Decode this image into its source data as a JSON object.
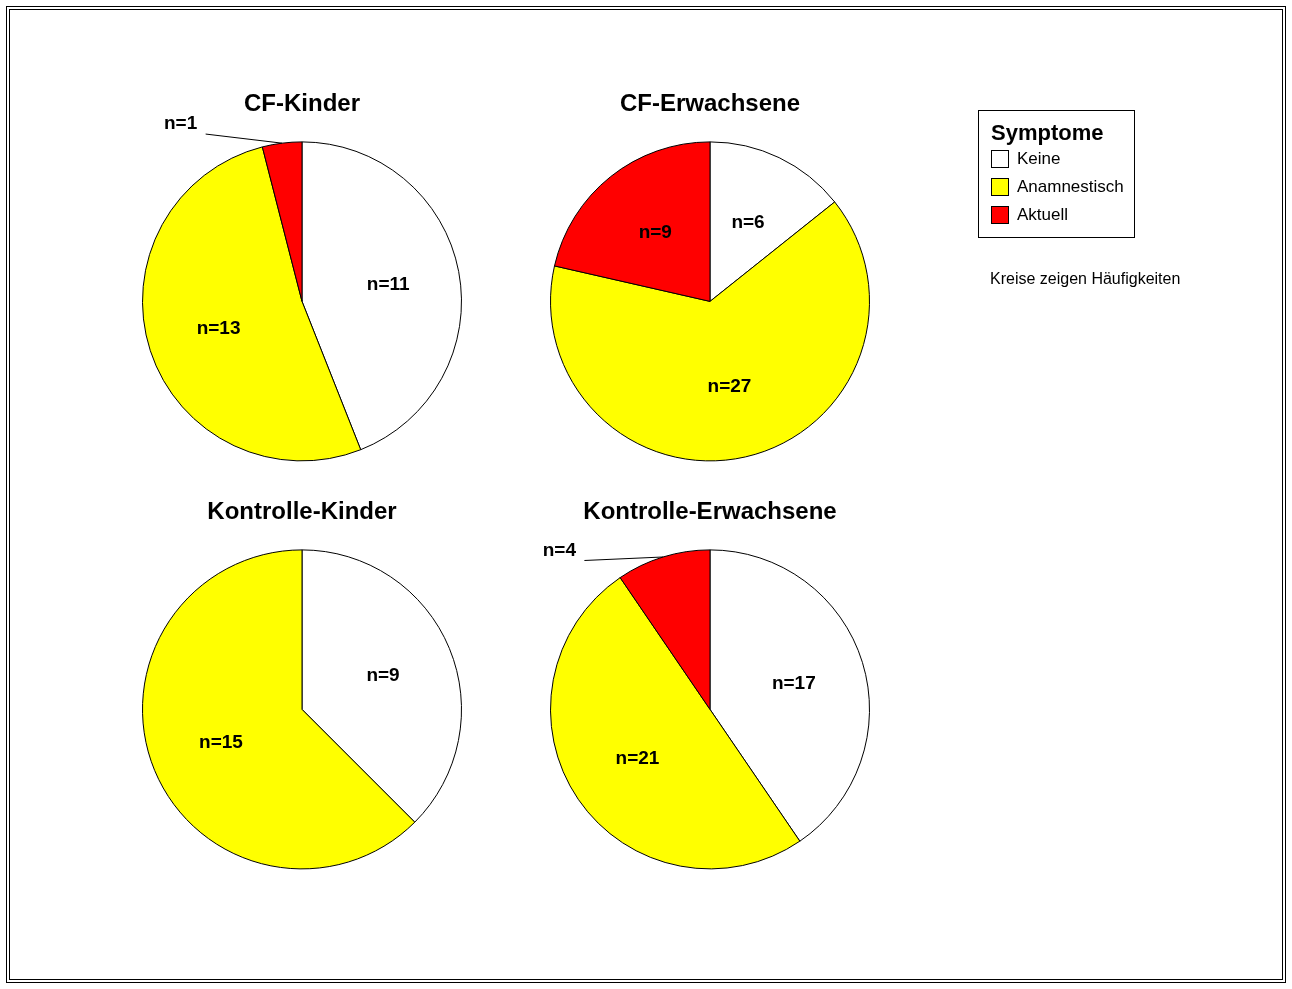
{
  "chart_data": [
    {
      "type": "pie",
      "title": "CF-Kinder",
      "categories": [
        "Keine",
        "Anamnestisch",
        "Aktuell"
      ],
      "values": [
        11,
        13,
        1
      ],
      "colors": [
        "#ffffff",
        "#ffff00",
        "#ff0000"
      ],
      "value_labels": [
        "n=11",
        "n=13",
        "n=1"
      ],
      "legend": "right",
      "legend_title": "Symptome",
      "annotations": [
        "Kreise zeigen Häufigkeiten"
      ]
    },
    {
      "type": "pie",
      "title": "CF-Erwachsene",
      "categories": [
        null,
        null,
        null
      ],
      "values": [
        6,
        27,
        9
      ],
      "colors": [
        "#ffffff",
        "#ffff00",
        "#ff0000"
      ],
      "value_labels": [
        "n=6",
        "n=27",
        "n=9"
      ]
    },
    {
      "type": "pie",
      "title": "Kontrolle-Kinder",
      "categories": [
        null,
        null
      ],
      "values": [
        9,
        15
      ],
      "colors": [
        "#ffffff",
        "#ffff00"
      ],
      "value_labels": [
        "n=9",
        "n=15"
      ]
    },
    {
      "type": "pie",
      "title": "Kontrolle-Erwachsene",
      "categories": [
        null,
        null,
        null
      ],
      "values": [
        17,
        21,
        4
      ],
      "colors": [
        "#ffffff",
        "#ffff00",
        "#ff0000"
      ],
      "value_labels": [
        "n=17",
        "n=21",
        "n=4"
      ]
    }
  ]
}
